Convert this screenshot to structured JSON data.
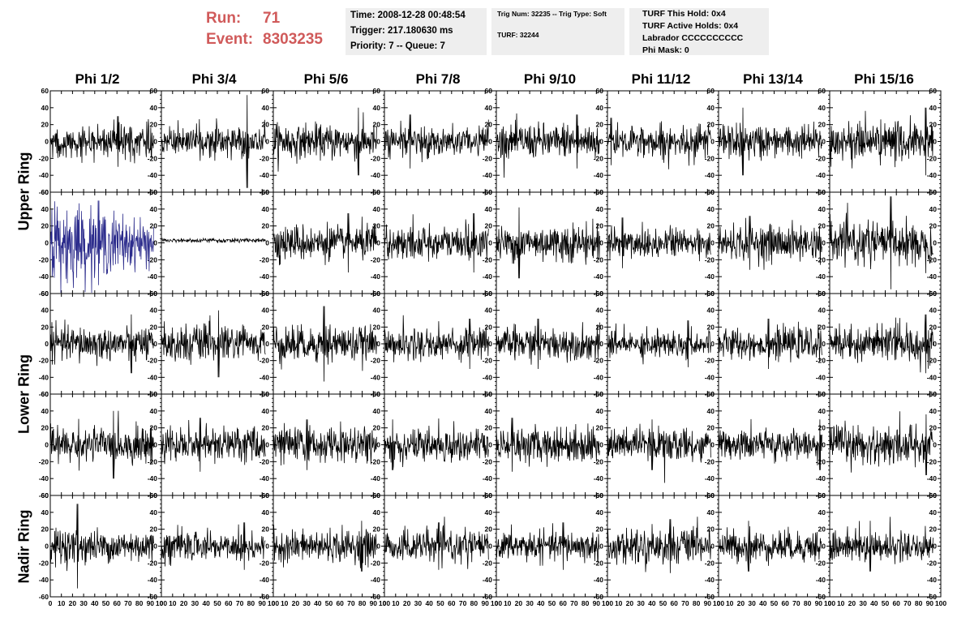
{
  "header": {
    "run_label": "Run:",
    "run_value": "71",
    "event_label": "Event:",
    "event_value": "8303235"
  },
  "info_box_1": {
    "time": "Time: 2008-12-28 00:48:54",
    "trigger": "Trigger: 217.180630 ms",
    "priority": "Priority: 7 -- Queue: 7"
  },
  "info_box_2": {
    "trig": "Trig Num: 32235 -- Trig Type: Soft",
    "turf": "TURF: 32244"
  },
  "info_box_3": {
    "this_hold": "TURF This Hold: 0x4",
    "active_holds": "TURF Active Holds: 0x4",
    "labrador": "Labrador CCCCCCCCCC",
    "phi_mask": "Phi Mask: 0"
  },
  "columns": [
    "Phi 1/2",
    "Phi 3/4",
    "Phi 5/6",
    "Phi 7/8",
    "Phi 9/10",
    "Phi 11/12",
    "Phi 13/14",
    "Phi 15/16"
  ],
  "ring_labels": [
    "Upper Ring",
    "Lower Ring",
    "Nadir Ring"
  ],
  "colors": {
    "run_text": "#d05a5a",
    "info_bg": "#eeeeee",
    "trace_default": "#000000",
    "trace_highlight": "#2c2c8c"
  },
  "chart_data": {
    "type": "line",
    "grid": false,
    "x_label": "",
    "y_label": "",
    "xlim": [
      0,
      100
    ],
    "ylim": [
      -60,
      60
    ],
    "x_ticks": [
      "0",
      "10",
      "20",
      "30",
      "40",
      "50",
      "60",
      "70",
      "80",
      "90",
      "100"
    ],
    "y_ticks": [
      "-60",
      "-40",
      "-20",
      "0",
      "20",
      "40",
      "60"
    ],
    "samples_per_trace": 256,
    "rows": 5,
    "cols": 8,
    "panels": [
      {
        "row": 0,
        "col": 0,
        "amplitude": 12,
        "spike": 30
      },
      {
        "row": 0,
        "col": 1,
        "amplitude": 10,
        "spike": 55,
        "spike_x": 82
      },
      {
        "row": 0,
        "col": 2,
        "amplitude": 12,
        "spike": 40
      },
      {
        "row": 0,
        "col": 3,
        "amplitude": 11,
        "spike": 32
      },
      {
        "row": 0,
        "col": 4,
        "amplitude": 12,
        "spike": 32
      },
      {
        "row": 0,
        "col": 5,
        "amplitude": 11,
        "spike": 28
      },
      {
        "row": 0,
        "col": 6,
        "amplitude": 12,
        "spike": 40
      },
      {
        "row": 0,
        "col": 7,
        "amplitude": 14,
        "spike": 40
      },
      {
        "row": 1,
        "col": 0,
        "amplitude": 20,
        "spike": 50,
        "highlight": true,
        "decay": true
      },
      {
        "row": 1,
        "col": 1,
        "amplitude": 2,
        "spike": 5,
        "flat": true
      },
      {
        "row": 1,
        "col": 2,
        "amplitude": 12,
        "spike": 35
      },
      {
        "row": 1,
        "col": 3,
        "amplitude": 12,
        "spike": 35
      },
      {
        "row": 1,
        "col": 4,
        "amplitude": 13,
        "spike": 42
      },
      {
        "row": 1,
        "col": 5,
        "amplitude": 12,
        "spike": 30
      },
      {
        "row": 1,
        "col": 6,
        "amplitude": 12,
        "spike": 32
      },
      {
        "row": 1,
        "col": 7,
        "amplitude": 14,
        "spike": 55
      },
      {
        "row": 2,
        "col": 0,
        "amplitude": 12,
        "spike": 35
      },
      {
        "row": 2,
        "col": 1,
        "amplitude": 13,
        "spike": 40
      },
      {
        "row": 2,
        "col": 2,
        "amplitude": 13,
        "spike": 45
      },
      {
        "row": 2,
        "col": 3,
        "amplitude": 12,
        "spike": 30
      },
      {
        "row": 2,
        "col": 4,
        "amplitude": 11,
        "spike": 30
      },
      {
        "row": 2,
        "col": 5,
        "amplitude": 10,
        "spike": 28
      },
      {
        "row": 2,
        "col": 6,
        "amplitude": 11,
        "spike": 30
      },
      {
        "row": 2,
        "col": 7,
        "amplitude": 13,
        "spike": 35
      },
      {
        "row": 3,
        "col": 0,
        "amplitude": 13,
        "spike": 40
      },
      {
        "row": 3,
        "col": 1,
        "amplitude": 12,
        "spike": 32
      },
      {
        "row": 3,
        "col": 2,
        "amplitude": 12,
        "spike": 30
      },
      {
        "row": 3,
        "col": 3,
        "amplitude": 12,
        "spike": 30
      },
      {
        "row": 3,
        "col": 4,
        "amplitude": 12,
        "spike": 32
      },
      {
        "row": 3,
        "col": 5,
        "amplitude": 11,
        "spike": 30
      },
      {
        "row": 3,
        "col": 6,
        "amplitude": 11,
        "spike": 30
      },
      {
        "row": 3,
        "col": 7,
        "amplitude": 14,
        "spike": 36
      },
      {
        "row": 4,
        "col": 0,
        "amplitude": 12,
        "spike": 50
      },
      {
        "row": 4,
        "col": 1,
        "amplitude": 11,
        "spike": 28
      },
      {
        "row": 4,
        "col": 2,
        "amplitude": 11,
        "spike": 30
      },
      {
        "row": 4,
        "col": 3,
        "amplitude": 11,
        "spike": 28
      },
      {
        "row": 4,
        "col": 4,
        "amplitude": 10,
        "spike": 28
      },
      {
        "row": 4,
        "col": 5,
        "amplitude": 12,
        "spike": 32
      },
      {
        "row": 4,
        "col": 6,
        "amplitude": 11,
        "spike": 30
      },
      {
        "row": 4,
        "col": 7,
        "amplitude": 11,
        "spike": 30
      }
    ]
  }
}
